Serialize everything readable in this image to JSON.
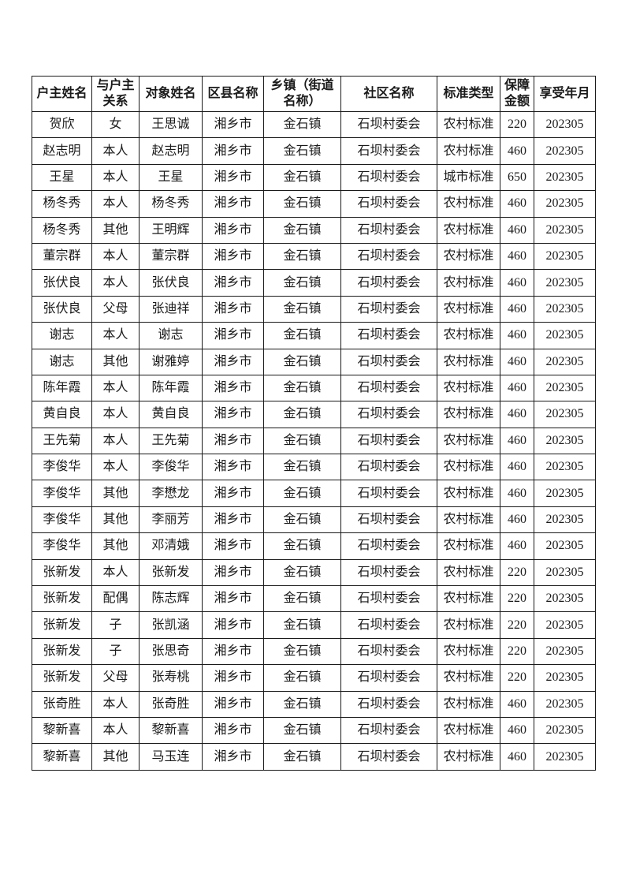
{
  "document": {
    "table": {
      "columns": [
        "户主姓名",
        "与户主\n关系",
        "对象姓名",
        "区县名称",
        "乡镇（街道\n名称）",
        "社区名称",
        "标准类型",
        "保障\n金额",
        "享受年月"
      ],
      "rows": [
        [
          "贺欣",
          "女",
          "王思诚",
          "湘乡市",
          "金石镇",
          "石坝村委会",
          "农村标准",
          "220",
          "202305"
        ],
        [
          "赵志明",
          "本人",
          "赵志明",
          "湘乡市",
          "金石镇",
          "石坝村委会",
          "农村标准",
          "460",
          "202305"
        ],
        [
          "王星",
          "本人",
          "王星",
          "湘乡市",
          "金石镇",
          "石坝村委会",
          "城市标准",
          "650",
          "202305"
        ],
        [
          "杨冬秀",
          "本人",
          "杨冬秀",
          "湘乡市",
          "金石镇",
          "石坝村委会",
          "农村标准",
          "460",
          "202305"
        ],
        [
          "杨冬秀",
          "其他",
          "王明辉",
          "湘乡市",
          "金石镇",
          "石坝村委会",
          "农村标准",
          "460",
          "202305"
        ],
        [
          "董宗群",
          "本人",
          "董宗群",
          "湘乡市",
          "金石镇",
          "石坝村委会",
          "农村标准",
          "460",
          "202305"
        ],
        [
          "张伏良",
          "本人",
          "张伏良",
          "湘乡市",
          "金石镇",
          "石坝村委会",
          "农村标准",
          "460",
          "202305"
        ],
        [
          "张伏良",
          "父母",
          "张迪祥",
          "湘乡市",
          "金石镇",
          "石坝村委会",
          "农村标准",
          "460",
          "202305"
        ],
        [
          "谢志",
          "本人",
          "谢志",
          "湘乡市",
          "金石镇",
          "石坝村委会",
          "农村标准",
          "460",
          "202305"
        ],
        [
          "谢志",
          "其他",
          "谢雅婷",
          "湘乡市",
          "金石镇",
          "石坝村委会",
          "农村标准",
          "460",
          "202305"
        ],
        [
          "陈年霞",
          "本人",
          "陈年霞",
          "湘乡市",
          "金石镇",
          "石坝村委会",
          "农村标准",
          "460",
          "202305"
        ],
        [
          "黄自良",
          "本人",
          "黄自良",
          "湘乡市",
          "金石镇",
          "石坝村委会",
          "农村标准",
          "460",
          "202305"
        ],
        [
          "王先菊",
          "本人",
          "王先菊",
          "湘乡市",
          "金石镇",
          "石坝村委会",
          "农村标准",
          "460",
          "202305"
        ],
        [
          "李俊华",
          "本人",
          "李俊华",
          "湘乡市",
          "金石镇",
          "石坝村委会",
          "农村标准",
          "460",
          "202305"
        ],
        [
          "李俊华",
          "其他",
          "李懋龙",
          "湘乡市",
          "金石镇",
          "石坝村委会",
          "农村标准",
          "460",
          "202305"
        ],
        [
          "李俊华",
          "其他",
          "李丽芳",
          "湘乡市",
          "金石镇",
          "石坝村委会",
          "农村标准",
          "460",
          "202305"
        ],
        [
          "李俊华",
          "其他",
          "邓清娥",
          "湘乡市",
          "金石镇",
          "石坝村委会",
          "农村标准",
          "460",
          "202305"
        ],
        [
          "张新发",
          "本人",
          "张新发",
          "湘乡市",
          "金石镇",
          "石坝村委会",
          "农村标准",
          "220",
          "202305"
        ],
        [
          "张新发",
          "配偶",
          "陈志辉",
          "湘乡市",
          "金石镇",
          "石坝村委会",
          "农村标准",
          "220",
          "202305"
        ],
        [
          "张新发",
          "子",
          "张凯涵",
          "湘乡市",
          "金石镇",
          "石坝村委会",
          "农村标准",
          "220",
          "202305"
        ],
        [
          "张新发",
          "子",
          "张思奇",
          "湘乡市",
          "金石镇",
          "石坝村委会",
          "农村标准",
          "220",
          "202305"
        ],
        [
          "张新发",
          "父母",
          "张寿桃",
          "湘乡市",
          "金石镇",
          "石坝村委会",
          "农村标准",
          "220",
          "202305"
        ],
        [
          "张奇胜",
          "本人",
          "张奇胜",
          "湘乡市",
          "金石镇",
          "石坝村委会",
          "农村标准",
          "460",
          "202305"
        ],
        [
          "黎新喜",
          "本人",
          "黎新喜",
          "湘乡市",
          "金石镇",
          "石坝村委会",
          "农村标准",
          "460",
          "202305"
        ],
        [
          "黎新喜",
          "其他",
          "马玉连",
          "湘乡市",
          "金石镇",
          "石坝村委会",
          "农村标准",
          "460",
          "202305"
        ]
      ]
    }
  }
}
